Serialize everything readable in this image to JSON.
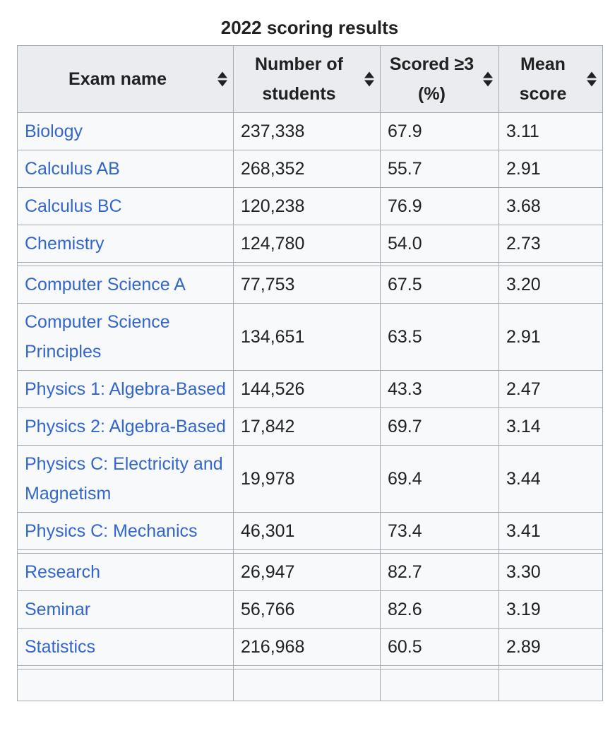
{
  "title": "2022 scoring results",
  "colors": {
    "link_blue": "#3366cc",
    "header_background": "#eaecf0",
    "cell_background": "#f8f9fa",
    "border": "#a2a9b1",
    "text": "#202122"
  },
  "table": {
    "columns": [
      {
        "label": "Exam name",
        "sort_icon": "sort-both-icon"
      },
      {
        "label": "Number of students",
        "sort_icon": "sort-both-icon"
      },
      {
        "label": "Scored ≥3 (%)",
        "sort_icon": "sort-both-icon"
      },
      {
        "label": "Mean score",
        "sort_icon": "sort-both-icon"
      }
    ],
    "groups": [
      {
        "rows": [
          {
            "exam": "Biology",
            "students": "237,338",
            "scored_3_pct": "67.9",
            "mean_score": "3.11"
          },
          {
            "exam": "Calculus AB",
            "students": "268,352",
            "scored_3_pct": "55.7",
            "mean_score": "2.91"
          },
          {
            "exam": "Calculus BC",
            "students": "120,238",
            "scored_3_pct": "76.9",
            "mean_score": "3.68"
          },
          {
            "exam": "Chemistry",
            "students": "124,780",
            "scored_3_pct": "54.0",
            "mean_score": "2.73"
          }
        ]
      },
      {
        "rows": [
          {
            "exam": "Computer Science A",
            "students": "77,753",
            "scored_3_pct": "67.5",
            "mean_score": "3.20"
          },
          {
            "exam": "Computer Science Principles",
            "students": "134,651",
            "scored_3_pct": "63.5",
            "mean_score": "2.91"
          },
          {
            "exam": "Physics 1: Algebra-Based",
            "students": "144,526",
            "scored_3_pct": "43.3",
            "mean_score": "2.47"
          },
          {
            "exam": "Physics 2: Algebra-Based",
            "students": "17,842",
            "scored_3_pct": "69.7",
            "mean_score": "3.14"
          },
          {
            "exam": "Physics C: Electricity and Magnetism",
            "students": "19,978",
            "scored_3_pct": "69.4",
            "mean_score": "3.44"
          },
          {
            "exam": "Physics C: Mechanics",
            "students": "46,301",
            "scored_3_pct": "73.4",
            "mean_score": "3.41"
          }
        ]
      },
      {
        "rows": [
          {
            "exam": "Research",
            "students": "26,947",
            "scored_3_pct": "82.7",
            "mean_score": "3.30"
          },
          {
            "exam": "Seminar",
            "students": "56,766",
            "scored_3_pct": "82.6",
            "mean_score": "3.19"
          },
          {
            "exam": "Statistics",
            "students": "216,968",
            "scored_3_pct": "60.5",
            "mean_score": "2.89"
          }
        ]
      }
    ]
  }
}
